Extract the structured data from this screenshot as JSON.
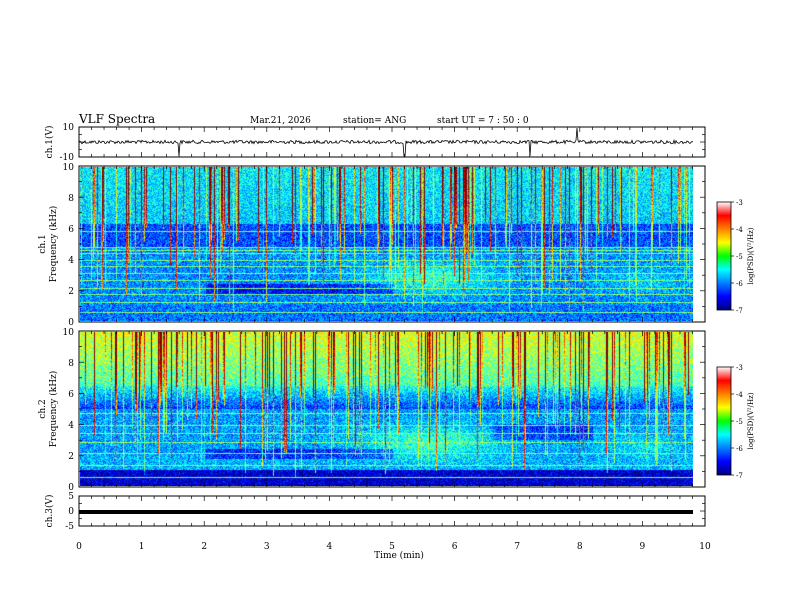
{
  "header": {
    "title": "VLF Spectra",
    "date": "Mar.21, 2026",
    "station": "station= ANG",
    "start": "start  UT =   7 : 50 : 0"
  },
  "chart_data": [
    {
      "type": "line",
      "ylabel": "ch.1(V)",
      "ylim": [
        -10,
        10
      ],
      "yticks": [
        "10",
        "-10"
      ],
      "xlim": [
        0,
        10
      ],
      "baseline": 0,
      "spikes": [
        1.6,
        5.2,
        7.2,
        7.95
      ]
    },
    {
      "type": "heatmap",
      "ylabel_line1": "ch.1",
      "ylabel_line2": "Frequency  (kHz)",
      "ylim": [
        0,
        10
      ],
      "yticks": [
        "0",
        "2",
        "4",
        "6",
        "8",
        "10"
      ],
      "xlim": [
        0,
        9.8
      ],
      "colorbar": {
        "label": "log(PSD)(V²/Hz)",
        "ticks": [
          "-3",
          "-4",
          "-5",
          "-6",
          "-7"
        ],
        "range": [
          -7,
          -3
        ]
      }
    },
    {
      "type": "heatmap",
      "ylabel_line1": "ch.2",
      "ylabel_line2": "Frequency  (kHz)",
      "ylim": [
        0,
        10
      ],
      "yticks": [
        "0",
        "2",
        "4",
        "6",
        "8",
        "10"
      ],
      "xlim": [
        0,
        9.8
      ],
      "colorbar": {
        "label": "log(PSD)(V²/Hz)",
        "ticks": [
          "-3",
          "-4",
          "-5",
          "-6",
          "-7"
        ],
        "range": [
          -7,
          -3
        ]
      }
    },
    {
      "type": "line",
      "ylabel": "ch.3(V)",
      "ylim": [
        -5,
        5
      ],
      "yticks": [
        "5",
        "0",
        "-5"
      ],
      "xlim": [
        0,
        10
      ],
      "baseline": 0,
      "xlabel": "Time  (min)",
      "xticks": [
        "0",
        "1",
        "2",
        "3",
        "4",
        "5",
        "6",
        "7",
        "8",
        "9",
        "10"
      ]
    }
  ]
}
